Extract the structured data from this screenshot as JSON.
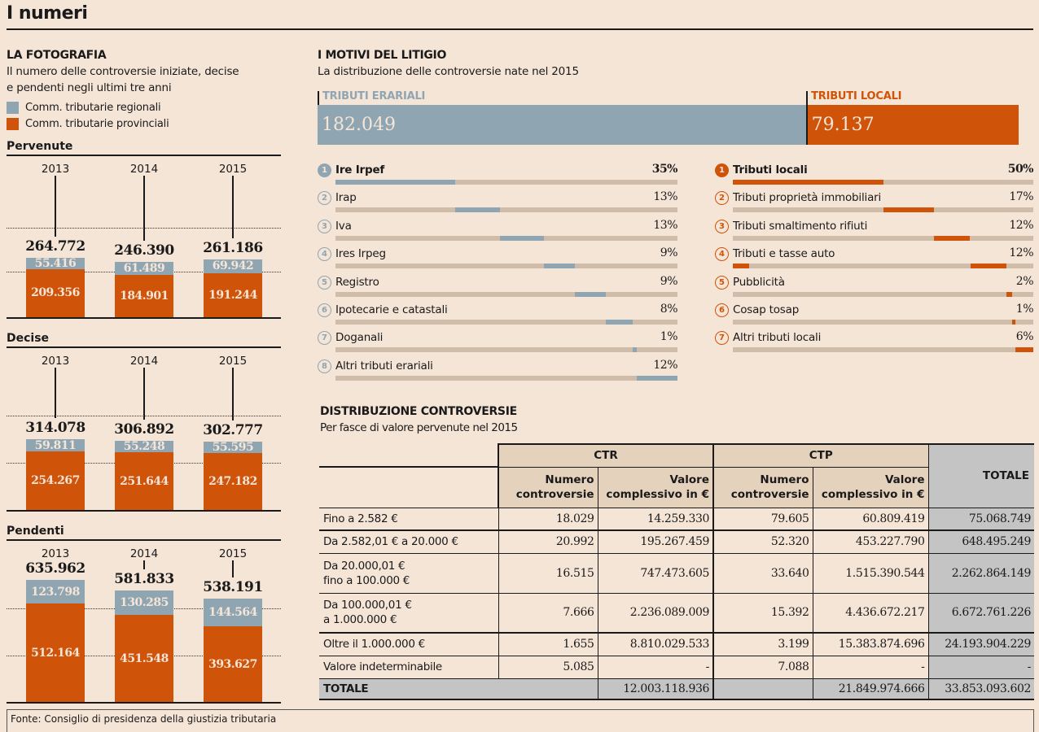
{
  "page": {
    "title": "I numeri",
    "source": "Fonte: Consiglio di presidenza della giustizia tributaria"
  },
  "colors": {
    "regionali": "#8fa5b1",
    "provinciali": "#cf5308",
    "track": "#cfbca9",
    "background": "#f5e5d7",
    "header_bg": "#e5d2bd",
    "total_bg": "#c3c4c3"
  },
  "fotografia": {
    "title": "LA FOTOGRAFIA",
    "subtitle_line1": "Il numero delle controversie iniziate, decise",
    "subtitle_line2": "e pendenti negli ultimi tre anni",
    "legend": [
      {
        "label": "Comm. tributarie regionali",
        "color": "#8fa5b1"
      },
      {
        "label": "Comm. tributarie provinciali",
        "color": "#cf5308"
      }
    ]
  },
  "chart_data": [
    {
      "type": "bar",
      "stacked": true,
      "title": "Pervenute",
      "categories": [
        "2013",
        "2014",
        "2015"
      ],
      "series": [
        {
          "name": "Comm. tributarie provinciali",
          "values": [
            209356,
            184901,
            191244
          ],
          "labels": [
            "209.356",
            "184.901",
            "191.244"
          ]
        },
        {
          "name": "Comm. tributarie regionali",
          "values": [
            55416,
            61489,
            69942
          ],
          "labels": [
            "55.416",
            "61.489",
            "69.942"
          ]
        }
      ],
      "totals": [
        264772,
        246390,
        261186
      ],
      "total_labels": [
        "264.772",
        "246.390",
        "261.186"
      ],
      "ylim": [
        0,
        700000
      ]
    },
    {
      "type": "bar",
      "stacked": true,
      "title": "Decise",
      "categories": [
        "2013",
        "2014",
        "2015"
      ],
      "series": [
        {
          "name": "Comm. tributarie provinciali",
          "values": [
            254267,
            251644,
            247182
          ],
          "labels": [
            "254.267",
            "251.644",
            "247.182"
          ]
        },
        {
          "name": "Comm. tributarie regionali",
          "values": [
            59811,
            55248,
            55595
          ],
          "labels": [
            "59.811",
            "55.248",
            "55.595"
          ]
        }
      ],
      "totals": [
        314078,
        306892,
        302777
      ],
      "total_labels": [
        "314.078",
        "306.892",
        "302.777"
      ],
      "ylim": [
        0,
        700000
      ]
    },
    {
      "type": "bar",
      "stacked": true,
      "title": "Pendenti",
      "categories": [
        "2013",
        "2014",
        "2015"
      ],
      "series": [
        {
          "name": "Comm. tributarie provinciali",
          "values": [
            512164,
            451548,
            393627
          ],
          "labels": [
            "512.164",
            "451.548",
            "393.627"
          ]
        },
        {
          "name": "Comm. tributarie regionali",
          "values": [
            123798,
            130285,
            144564
          ],
          "labels": [
            "123.798",
            "130.285",
            "144.564"
          ]
        }
      ],
      "totals": [
        635962,
        581833,
        538191
      ],
      "total_labels": [
        "635.962",
        "581.833",
        "538.191"
      ],
      "ylim": [
        0,
        700000
      ]
    },
    {
      "type": "bar",
      "stacked": true,
      "orientation": "horizontal",
      "title": "I MOTIVI DEL LITIGIO",
      "subtitle": "La distribuzione delle controversie nate nel 2015",
      "categories": [
        "TRIBUTI ERARIALI",
        "TRIBUTI LOCALI"
      ],
      "values": [
        182049,
        79137
      ],
      "labels": [
        "182.049",
        "79.137"
      ]
    },
    {
      "type": "bar",
      "title": "Tributi erariali",
      "categories": [
        "Ire Irpef",
        "Irap",
        "Iva",
        "Ires Irpeg",
        "Registro",
        "Ipotecarie e catastali",
        "Doganali",
        "Altri tributi erariali"
      ],
      "values": [
        35,
        13,
        13,
        9,
        9,
        8,
        1,
        12
      ],
      "unit": "%"
    },
    {
      "type": "bar",
      "title": "Tributi locali",
      "categories": [
        "Tributi locali",
        "Tributi proprietà immobiliari",
        "Tributi smaltimento rifiuti",
        "Tributi e tasse auto",
        "Pubblicità",
        "Cosap tosap",
        "Altri tributi locali"
      ],
      "values": [
        50,
        17,
        12,
        12,
        2,
        1,
        6
      ],
      "unit": "%"
    }
  ],
  "motivi": {
    "title": "I MOTIVI DEL LITIGIO",
    "subtitle": "La distribuzione delle controversie nate nel 2015",
    "erariali": {
      "label": "TRIBUTI ERARIALI",
      "value": "182.049",
      "items": [
        {
          "n": "1",
          "label": "Ire Irpef",
          "pct": "35%",
          "v": 35
        },
        {
          "n": "2",
          "label": "Irap",
          "pct": "13%",
          "v": 13
        },
        {
          "n": "3",
          "label": "Iva",
          "pct": "13%",
          "v": 13
        },
        {
          "n": "4",
          "label": "Ires Irpeg",
          "pct": "9%",
          "v": 9
        },
        {
          "n": "5",
          "label": "Registro",
          "pct": "9%",
          "v": 9
        },
        {
          "n": "6",
          "label": "Ipotecarie e catastali",
          "pct": "8%",
          "v": 8
        },
        {
          "n": "7",
          "label": "Doganali",
          "pct": "1%",
          "v": 1
        },
        {
          "n": "8",
          "label": "Altri tributi erariali",
          "pct": "12%",
          "v": 12
        }
      ]
    },
    "locali": {
      "label": "TRIBUTI LOCALI",
      "value": "79.137",
      "items": [
        {
          "n": "1",
          "label": "Tributi locali",
          "pct": "50%",
          "v": 50
        },
        {
          "n": "2",
          "label": "Tributi proprietà immobiliari",
          "pct": "17%",
          "v": 17
        },
        {
          "n": "3",
          "label": "Tributi smaltimento rifiuti",
          "pct": "12%",
          "v": 12
        },
        {
          "n": "4",
          "label": "Tributi e tasse auto",
          "pct": "12%",
          "v": 12
        },
        {
          "n": "5",
          "label": "Pubblicità",
          "pct": "2%",
          "v": 2
        },
        {
          "n": "6",
          "label": "Cosap tosap",
          "pct": "1%",
          "v": 1
        },
        {
          "n": "7",
          "label": "Altri tributi locali",
          "pct": "6%",
          "v": 6
        }
      ]
    }
  },
  "distribuzione": {
    "title": "DISTRIBUZIONE CONTROVERSIE",
    "subtitle": "Per fasce di valore pervenute nel 2015",
    "headers": {
      "ctr": "CTR",
      "ctp": "CTP",
      "totale": "TOTALE",
      "numero_l1": "Numero",
      "numero_l2": "controversie",
      "valore_l1": "Valore",
      "valore_l2": "complessivo in €"
    },
    "rows": [
      {
        "label1": "Fino a 2.582 €",
        "label2": "",
        "ctr_n": "18.029",
        "ctr_v": "14.259.330",
        "ctp_n": "79.605",
        "ctp_v": "60.809.419",
        "tot": "75.068.749"
      },
      {
        "label1": "Da 2.582,01 € a 20.000 €",
        "label2": "",
        "ctr_n": "20.992",
        "ctr_v": "195.267.459",
        "ctp_n": "52.320",
        "ctp_v": "453.227.790",
        "tot": "648.495.249"
      },
      {
        "label1": "Da 20.000,01 €",
        "label2": "fino a 100.000 €",
        "ctr_n": "16.515",
        "ctr_v": "747.473.605",
        "ctp_n": "33.640",
        "ctp_v": "1.515.390.544",
        "tot": "2.262.864.149"
      },
      {
        "label1": "Da 100.000,01 €",
        "label2": "a 1.000.000 €",
        "ctr_n": "7.666",
        "ctr_v": "2.236.089.009",
        "ctp_n": "15.392",
        "ctp_v": "4.436.672.217",
        "tot": "6.672.761.226"
      },
      {
        "label1": "Oltre il 1.000.000 €",
        "label2": "",
        "ctr_n": "1.655",
        "ctr_v": "8.810.029.533",
        "ctp_n": "3.199",
        "ctp_v": "15.383.874.696",
        "tot": "24.193.904.229"
      },
      {
        "label1": "Valore indeterminabile",
        "label2": "",
        "ctr_n": "5.085",
        "ctr_v": "-",
        "ctp_n": "7.088",
        "ctp_v": "-",
        "tot": "-"
      }
    ],
    "total_row": {
      "label": "TOTALE",
      "ctr_v": "12.003.118.936",
      "ctp_v": "21.849.974.666",
      "tot": "33.853.093.602"
    }
  }
}
